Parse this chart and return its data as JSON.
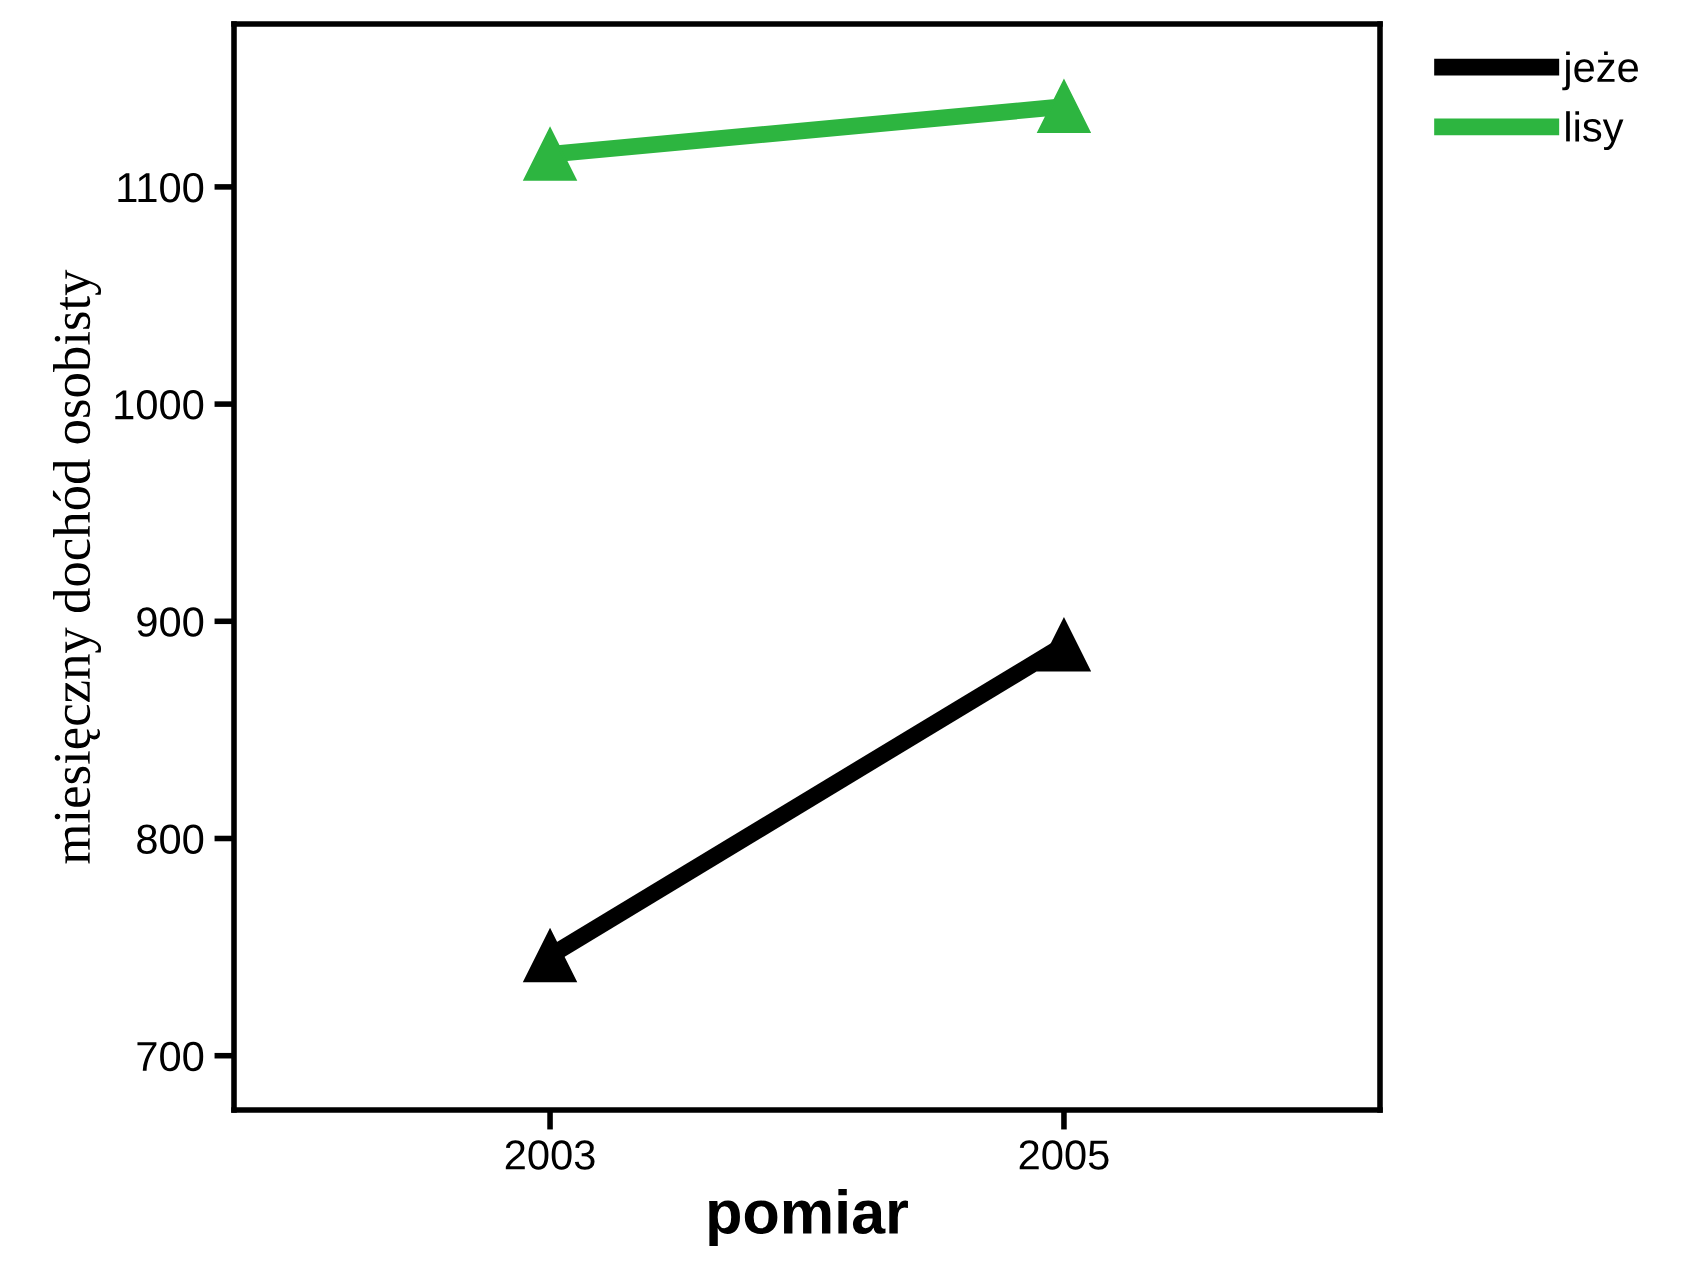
{
  "chart_data": {
    "type": "line",
    "xlabel": "pomiar",
    "ylabel": "miesięczny dochód osobisty",
    "categories": [
      "2003",
      "2005"
    ],
    "series": [
      {
        "name": "jeże",
        "color": "#000000",
        "values": [
          746,
          889
        ]
      },
      {
        "name": "lisy",
        "color": "#2db540",
        "values": [
          1115,
          1137
        ]
      }
    ],
    "ylim": [
      675,
      1175
    ],
    "yticks": [
      700,
      800,
      900,
      1000,
      1100
    ],
    "marker": "triangle",
    "line_style": "solid",
    "legend": "top right",
    "grid": false
  }
}
